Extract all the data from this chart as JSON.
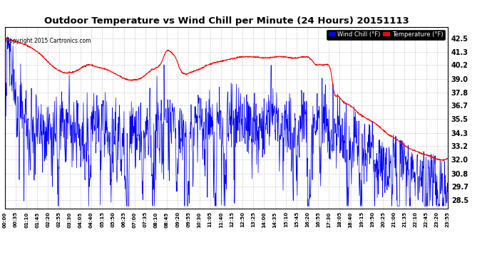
{
  "title": "Outdoor Temperature vs Wind Chill per Minute (24 Hours) 20151113",
  "copyright_text": "Copyright 2015 Cartronics.com",
  "legend_wind_chill": "Wind Chill (°F)",
  "legend_temperature": "Temperature (°F)",
  "wind_chill_color": "#0000FF",
  "temperature_color": "#FF0000",
  "legend_wc_bg": "#0000FF",
  "legend_temp_bg": "#FF0000",
  "background_color": "#FFFFFF",
  "plot_bg_color": "#FFFFFF",
  "grid_color": "#C0C0C0",
  "title_fontsize": 9.5,
  "ylabel_ticks": [
    28.5,
    29.7,
    30.8,
    32.0,
    33.2,
    34.3,
    35.5,
    36.7,
    37.8,
    39.0,
    40.2,
    41.3,
    42.5
  ],
  "ylim": [
    27.8,
    43.5
  ],
  "xtick_labels": [
    "00:00",
    "00:35",
    "01:10",
    "01:45",
    "02:20",
    "02:55",
    "03:30",
    "04:05",
    "04:40",
    "05:15",
    "05:50",
    "06:25",
    "07:00",
    "07:35",
    "08:10",
    "08:45",
    "09:20",
    "09:55",
    "10:30",
    "11:05",
    "11:40",
    "12:15",
    "12:50",
    "13:25",
    "14:00",
    "14:35",
    "15:10",
    "15:45",
    "16:20",
    "16:55",
    "17:30",
    "18:05",
    "18:40",
    "19:15",
    "19:50",
    "20:25",
    "21:00",
    "21:35",
    "22:10",
    "22:45",
    "23:20",
    "23:55"
  ],
  "num_minutes": 1440
}
